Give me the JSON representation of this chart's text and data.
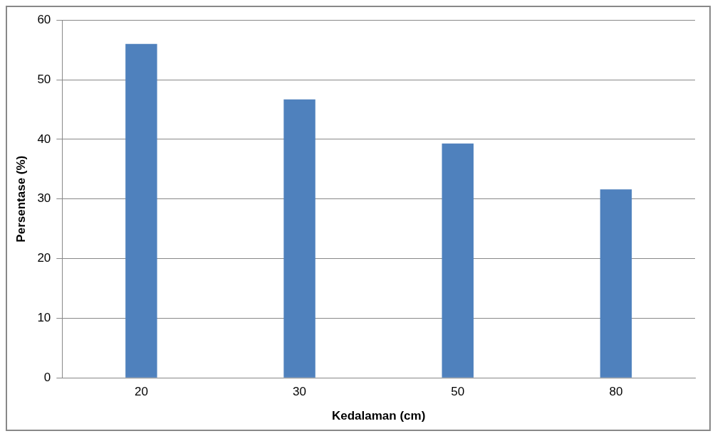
{
  "chart_data": {
    "type": "bar",
    "xlabel": "Kedalaman (cm)",
    "ylabel": "Persentase (%)",
    "categories": [
      "20",
      "30",
      "50",
      "80"
    ],
    "values": [
      56.0,
      46.7,
      39.3,
      31.6
    ],
    "color": "#4f81bd",
    "ylim": [
      0,
      60
    ],
    "yticks": [
      0,
      10,
      20,
      30,
      40,
      50,
      60
    ],
    "grid": "y",
    "legend": false
  }
}
